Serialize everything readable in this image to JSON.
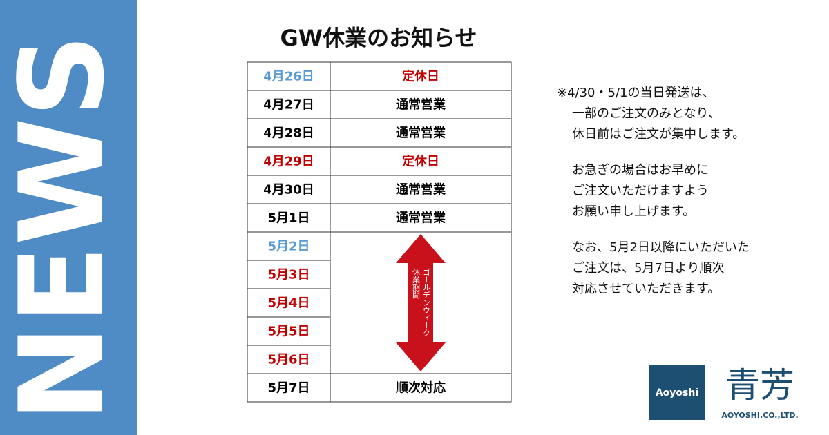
{
  "sidebar": "NEWS",
  "title": "GW休業のお知らせ",
  "table": {
    "rows": [
      {
        "date": "4月26日",
        "date_color": "#5b9bd5",
        "status": "定休日",
        "status_color": "#c00000"
      },
      {
        "date": "4月27日",
        "date_color": "#000000",
        "status": "通常営業",
        "status_color": "#000000"
      },
      {
        "date": "4月28日",
        "date_color": "#000000",
        "status": "通常営業",
        "status_color": "#000000"
      },
      {
        "date": "4月29日",
        "date_color": "#c00000",
        "status": "定休日",
        "status_color": "#c00000"
      },
      {
        "date": "4月30日",
        "date_color": "#000000",
        "status": "通常営業",
        "status_color": "#000000"
      },
      {
        "date": "5月1日",
        "date_color": "#000000",
        "status": "通常営業",
        "status_color": "#000000"
      },
      {
        "date": "5月2日",
        "date_color": "#5b9bd5"
      },
      {
        "date": "5月3日",
        "date_color": "#c00000"
      },
      {
        "date": "5月4日",
        "date_color": "#c00000"
      },
      {
        "date": "5月5日",
        "date_color": "#c00000"
      },
      {
        "date": "5月6日",
        "date_color": "#c00000"
      },
      {
        "date": "5月7日",
        "date_color": "#000000",
        "status": "順次対応",
        "status_color": "#000000"
      }
    ],
    "holiday_label": [
      "ゴールデンウィーク",
      "休業期間"
    ]
  },
  "note": [
    [
      "※4/30・5/1の当日発送は、",
      "一部のご注文のみとなり、",
      "休日前はご注文が集中します。"
    ],
    [
      "お急ぎの場合はお早めに",
      "ご注文いただけますよう",
      "お願い申し上げます。"
    ],
    [
      "なお、5月2日以降にいただいた",
      "ご注文は、5月7日より順次",
      "対応させていただきます。"
    ]
  ],
  "logo": {
    "badge": "Aoyoshi",
    "name": "青芳",
    "company": "AOYOSHI.CO.,LTD."
  }
}
